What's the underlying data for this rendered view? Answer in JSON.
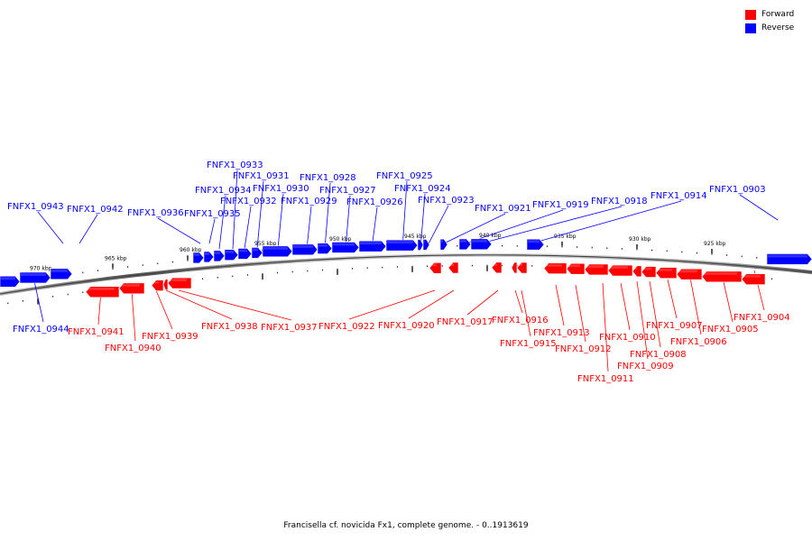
{
  "legend": {
    "forward_label": "Forward",
    "reverse_label": "Reverse",
    "forward_color": "#ff0000",
    "reverse_color": "#0000ff"
  },
  "caption": "Francisella cf. novicida Fx1, complete genome. - 0..1913619",
  "axis": {
    "unit": "kbp",
    "ticks": [
      {
        "kbp": 970,
        "label": "970 kbp"
      },
      {
        "kbp": 965,
        "label": "965 kbp"
      },
      {
        "kbp": 960,
        "label": "960 kbp"
      },
      {
        "kbp": 955,
        "label": "955 kbp"
      },
      {
        "kbp": 950,
        "label": "950 kbp"
      },
      {
        "kbp": 945,
        "label": "945 kbp"
      },
      {
        "kbp": 940,
        "label": "940 kbp"
      },
      {
        "kbp": 935,
        "label": "935 kbp"
      },
      {
        "kbp": 930,
        "label": "930 kbp"
      },
      {
        "kbp": 925,
        "label": "925 kbp"
      }
    ]
  },
  "genes": [
    {
      "name": "FNFX1_0944",
      "strand": "reverse"
    },
    {
      "name": "FNFX1_0943",
      "strand": "reverse"
    },
    {
      "name": "FNFX1_0942",
      "strand": "reverse"
    },
    {
      "name": "FNFX1_0941",
      "strand": "forward"
    },
    {
      "name": "FNFX1_0940",
      "strand": "forward"
    },
    {
      "name": "FNFX1_0939",
      "strand": "forward"
    },
    {
      "name": "FNFX1_0938",
      "strand": "forward"
    },
    {
      "name": "FNFX1_0937",
      "strand": "forward"
    },
    {
      "name": "FNFX1_0936",
      "strand": "reverse"
    },
    {
      "name": "FNFX1_0935",
      "strand": "reverse"
    },
    {
      "name": "FNFX1_0934",
      "strand": "reverse"
    },
    {
      "name": "FNFX1_0933",
      "strand": "reverse"
    },
    {
      "name": "FNFX1_0932",
      "strand": "reverse"
    },
    {
      "name": "FNFX1_0931",
      "strand": "reverse"
    },
    {
      "name": "FNFX1_0930",
      "strand": "reverse"
    },
    {
      "name": "FNFX1_0929",
      "strand": "reverse"
    },
    {
      "name": "FNFX1_0928",
      "strand": "reverse"
    },
    {
      "name": "FNFX1_0927",
      "strand": "reverse"
    },
    {
      "name": "FNFX1_0926",
      "strand": "reverse"
    },
    {
      "name": "FNFX1_0925",
      "strand": "reverse"
    },
    {
      "name": "FNFX1_0924",
      "strand": "reverse"
    },
    {
      "name": "FNFX1_0923",
      "strand": "reverse"
    },
    {
      "name": "FNFX1_0922",
      "strand": "forward"
    },
    {
      "name": "FNFX1_0921",
      "strand": "reverse"
    },
    {
      "name": "FNFX1_0920",
      "strand": "forward"
    },
    {
      "name": "FNFX1_0919",
      "strand": "reverse"
    },
    {
      "name": "FNFX1_0918",
      "strand": "reverse"
    },
    {
      "name": "FNFX1_0917",
      "strand": "forward"
    },
    {
      "name": "FNFX1_0916",
      "strand": "forward"
    },
    {
      "name": "FNFX1_0915",
      "strand": "forward"
    },
    {
      "name": "FNFX1_0914",
      "strand": "reverse"
    },
    {
      "name": "FNFX1_0913",
      "strand": "forward"
    },
    {
      "name": "FNFX1_0912",
      "strand": "forward"
    },
    {
      "name": "FNFX1_0911",
      "strand": "forward"
    },
    {
      "name": "FNFX1_0910",
      "strand": "forward"
    },
    {
      "name": "FNFX1_0909",
      "strand": "forward"
    },
    {
      "name": "FNFX1_0908",
      "strand": "forward"
    },
    {
      "name": "FNFX1_0907",
      "strand": "forward"
    },
    {
      "name": "FNFX1_0906",
      "strand": "forward"
    },
    {
      "name": "FNFX1_0905",
      "strand": "forward"
    },
    {
      "name": "FNFX1_0904",
      "strand": "forward"
    },
    {
      "name": "FNFX1_0903",
      "strand": "reverse"
    }
  ]
}
